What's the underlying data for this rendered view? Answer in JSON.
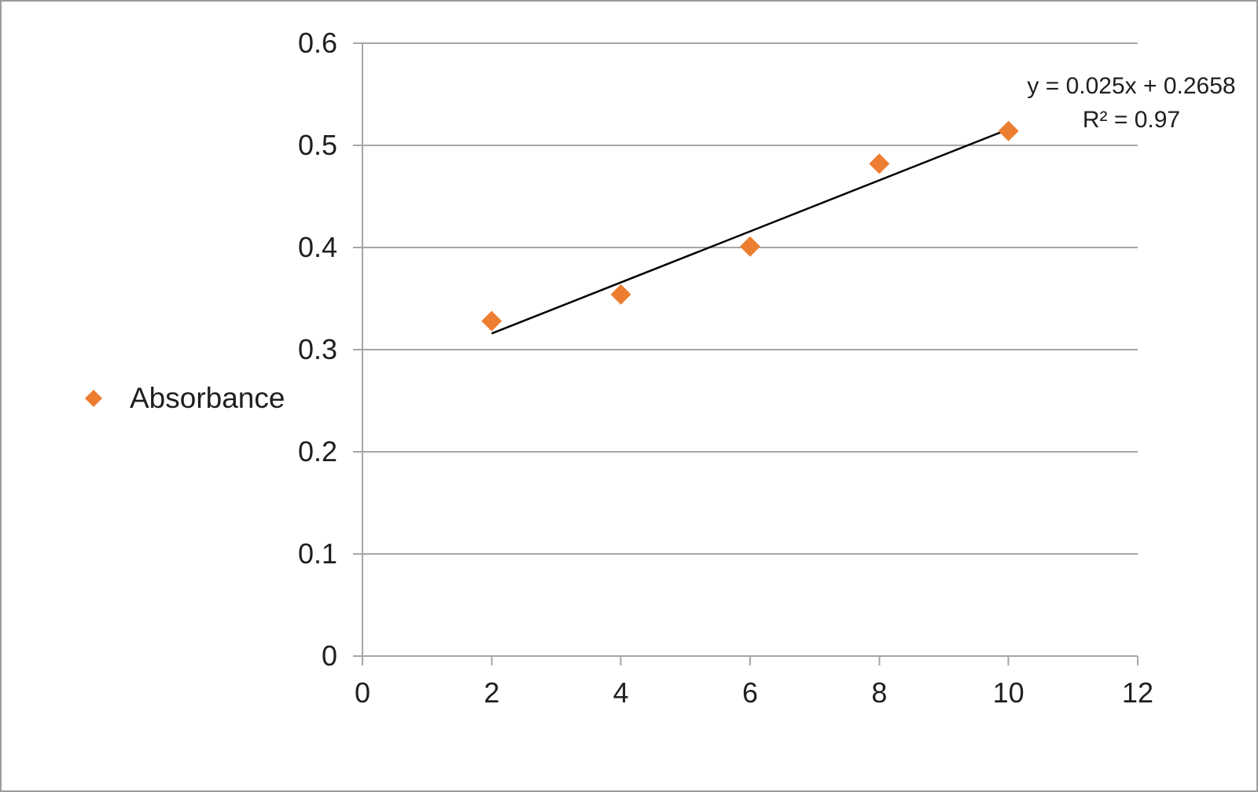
{
  "window": {
    "background": "#FFFFFF",
    "border_color": "#9B9B9B"
  },
  "chart_data": {
    "type": "scatter",
    "title": "",
    "xlabel": "",
    "ylabel": "",
    "series": [
      {
        "name": "Absorbance",
        "marker": "diamond",
        "color": "#ED7D31",
        "points": [
          {
            "x": 2,
            "y": 0.328
          },
          {
            "x": 4,
            "y": 0.354
          },
          {
            "x": 6,
            "y": 0.401
          },
          {
            "x": 8,
            "y": 0.482
          },
          {
            "x": 10,
            "y": 0.514
          }
        ]
      }
    ],
    "trendline": {
      "equation": "y = 0.025x + 0.2658",
      "r_squared": "R² = 0.97",
      "slope": 0.025,
      "intercept": 0.2658,
      "x_start": 2,
      "x_end": 10,
      "color": "#000000"
    },
    "x_axis": {
      "min": 0,
      "max": 12,
      "tick_values": [
        0,
        2,
        4,
        6,
        8,
        10,
        12
      ],
      "tick_labels": [
        "0",
        "2",
        "4",
        "6",
        "8",
        "10",
        "12"
      ]
    },
    "y_axis": {
      "min": 0,
      "max": 0.6,
      "tick_values": [
        0,
        0.1,
        0.2,
        0.3,
        0.4,
        0.5,
        0.6
      ],
      "tick_labels": [
        "0",
        "0.1",
        "0.2",
        "0.3",
        "0.4",
        "0.5",
        "0.6"
      ]
    },
    "gridlines": {
      "horizontal": true,
      "vertical": false,
      "color": "#A6A6A6"
    },
    "axis_color": "#A6A6A6",
    "text_color": "#1F1F1F",
    "legend": {
      "position": "left",
      "label": "Absorbance"
    }
  }
}
